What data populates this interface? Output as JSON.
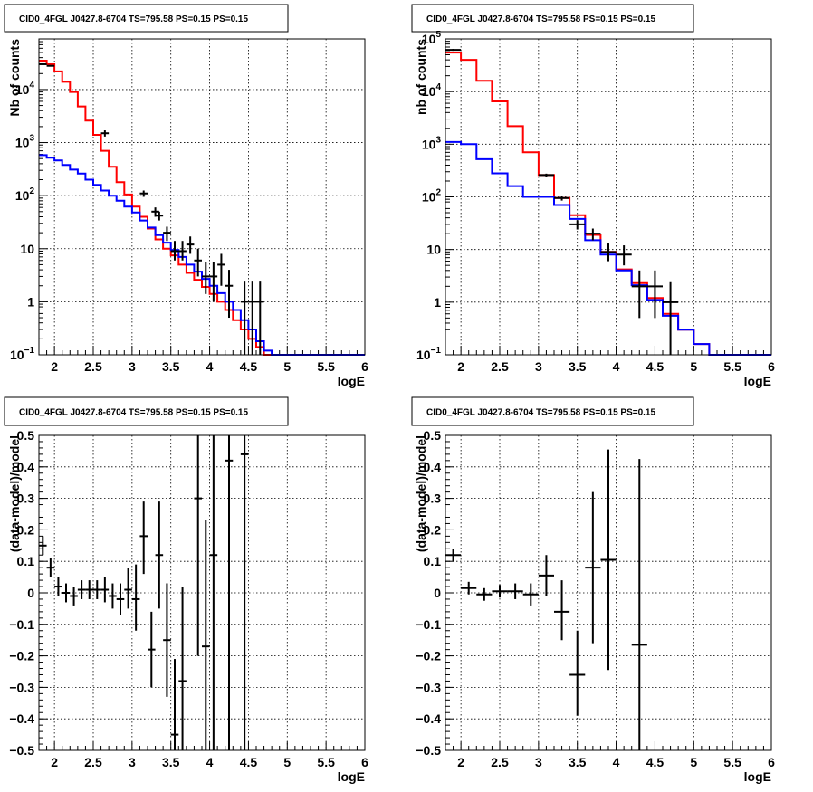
{
  "chart_data": [
    {
      "type": "line",
      "title": "CID0_4FGL J0427.8-6704 TS=795.58 PS=0.15 PS=0.15",
      "xlabel": "logE",
      "ylabel": "Nb of counts",
      "log_y": true,
      "xlim": [
        1.8,
        6
      ],
      "ylim": [
        0.1,
        90000
      ],
      "grid": true,
      "xticks": [
        2,
        2.5,
        3,
        3.5,
        4,
        4.5,
        5,
        5.5,
        6
      ],
      "xtick_labels": [
        "2",
        "2.5",
        "3",
        "3.5",
        "4",
        "4.5",
        "5",
        "5.5",
        "6"
      ],
      "yticks": [
        0.1,
        1,
        10,
        100,
        1000,
        10000
      ],
      "ytick_labels": [
        {
          "base": "10",
          "exp": "−1"
        },
        {
          "base": "1",
          "exp": ""
        },
        {
          "base": "10",
          "exp": ""
        },
        {
          "base": "10",
          "exp": "2"
        },
        {
          "base": "10",
          "exp": "3"
        },
        {
          "base": "10",
          "exp": "4"
        }
      ],
      "bin_edges": [
        1.8,
        1.9,
        2.0,
        2.1,
        2.2,
        2.3,
        2.4,
        2.5,
        2.6,
        2.7,
        2.8,
        2.9,
        3.0,
        3.1,
        3.2,
        3.3,
        3.4,
        3.5,
        3.6,
        3.7,
        3.8,
        3.9,
        4.0,
        4.1,
        4.2,
        4.3,
        4.4,
        4.5,
        4.6,
        4.7,
        4.8,
        4.9,
        5.0,
        5.1,
        5.2,
        5.3,
        5.4,
        5.5,
        5.6,
        5.7,
        5.8,
        5.9,
        6.0
      ],
      "series": [
        {
          "color": "#ff0000",
          "values": [
            35000,
            30000,
            22000,
            14000,
            9000,
            4800,
            2600,
            1400,
            700,
            350,
            180,
            105,
            62,
            40,
            24,
            15,
            10,
            7.5,
            5,
            3.5,
            2.6,
            1.9,
            1.4,
            1,
            0.7,
            0.45,
            0.3,
            0.2,
            0.14,
            0.1,
            0.1,
            0.1,
            0.1,
            0.1,
            0.1,
            0.1,
            0.1,
            0.1,
            0.1,
            0.1,
            0.1,
            0.1
          ]
        },
        {
          "color": "#0000ff",
          "values": [
            580,
            520,
            460,
            380,
            310,
            260,
            200,
            160,
            125,
            100,
            80,
            62,
            48,
            34,
            25,
            18,
            13,
            9.5,
            7,
            5,
            3.7,
            2.7,
            2,
            1.45,
            1,
            0.7,
            0.45,
            0.3,
            0.18,
            0.12,
            0.1,
            0.1,
            0.1,
            0.1,
            0.1,
            0.1,
            0.1,
            0.1,
            0.1,
            0.1,
            0.1,
            0.1
          ]
        }
      ],
      "points": [
        {
          "x": 1.85,
          "y": 30000,
          "dx": 0.05,
          "dy": [
            -800,
            800
          ]
        },
        {
          "x": 1.95,
          "y": 28000,
          "dx": 0.05,
          "dy": [
            -800,
            800
          ]
        },
        {
          "x": 2.65,
          "y": 1500,
          "dx": 0.05,
          "dy": [
            -200,
            200
          ]
        },
        {
          "x": 3.15,
          "y": 110,
          "dx": 0.05,
          "dy": [
            -15,
            15
          ]
        },
        {
          "x": 3.3,
          "y": 50,
          "dx": 0.05,
          "dy": [
            -10,
            10
          ]
        },
        {
          "x": 3.35,
          "y": 42,
          "dx": 0.05,
          "dy": [
            -8,
            8
          ]
        },
        {
          "x": 3.45,
          "y": 20,
          "dx": 0.05,
          "dy": [
            -6,
            6
          ]
        },
        {
          "x": 3.55,
          "y": 9,
          "dx": 0.05,
          "dy": [
            -3,
            5
          ]
        },
        {
          "x": 3.65,
          "y": 9,
          "dx": 0.05,
          "dy": [
            -3,
            5
          ]
        },
        {
          "x": 3.75,
          "y": 12,
          "dx": 0.05,
          "dy": [
            -4,
            5
          ]
        },
        {
          "x": 3.85,
          "y": 6,
          "dx": 0.05,
          "dy": [
            -3,
            4
          ]
        },
        {
          "x": 3.95,
          "y": 3,
          "dx": 0.05,
          "dy": [
            -1.6,
            2.5
          ]
        },
        {
          "x": 4.05,
          "y": 3,
          "dx": 0.05,
          "dy": [
            -2,
            2.5
          ]
        },
        {
          "x": 4.15,
          "y": 5,
          "dx": 0.05,
          "dy": [
            -3,
            3
          ]
        },
        {
          "x": 4.25,
          "y": 2,
          "dx": 0.05,
          "dy": [
            -1.5,
            2
          ]
        },
        {
          "x": 4.45,
          "y": 1,
          "dx": 0.05,
          "dy": [
            -0.999,
            1.4
          ]
        },
        {
          "x": 4.55,
          "y": 1,
          "dx": 0.05,
          "dy": [
            -0.999,
            1.4
          ]
        },
        {
          "x": 4.65,
          "y": 1,
          "dx": 0.05,
          "dy": [
            -0.999,
            1.4
          ]
        }
      ]
    },
    {
      "type": "line",
      "title": "CID0_4FGL J0427.8-6704 TS=795.58 PS=0.15 PS=0.15",
      "xlabel": "logE",
      "ylabel": "nb of counts",
      "log_y": true,
      "xlim": [
        1.8,
        6
      ],
      "ylim": [
        0.1,
        100000
      ],
      "grid": true,
      "xticks": [
        2,
        2.5,
        3,
        3.5,
        4,
        4.5,
        5,
        5.5,
        6
      ],
      "xtick_labels": [
        "2",
        "2.5",
        "3",
        "3.5",
        "4",
        "4.5",
        "5",
        "5.5",
        "6"
      ],
      "yticks": [
        0.1,
        1,
        10,
        100,
        1000,
        10000,
        100000
      ],
      "ytick_labels": [
        {
          "base": "10",
          "exp": "−1"
        },
        {
          "base": "1",
          "exp": ""
        },
        {
          "base": "10",
          "exp": ""
        },
        {
          "base": "10",
          "exp": "2"
        },
        {
          "base": "10",
          "exp": "3"
        },
        {
          "base": "10",
          "exp": "4"
        },
        {
          "base": "10",
          "exp": "5"
        }
      ],
      "bin_edges": [
        1.8,
        2.0,
        2.2,
        2.4,
        2.6,
        2.8,
        3.0,
        3.2,
        3.4,
        3.6,
        3.8,
        4.0,
        4.2,
        4.4,
        4.6,
        4.8,
        5.0,
        5.2,
        5.4,
        5.6,
        5.8,
        6.0
      ],
      "series": [
        {
          "color": "#ff0000",
          "values": [
            55000,
            40000,
            16000,
            6500,
            2200,
            700,
            260,
            95,
            45,
            19,
            9,
            4.2,
            2.3,
            1.2,
            0.6,
            0.3,
            0.16,
            0.1,
            0.1,
            0.1,
            0.1
          ]
        },
        {
          "color": "#0000ff",
          "values": [
            1100,
            1000,
            520,
            280,
            160,
            100,
            100,
            70,
            38,
            15,
            8,
            4,
            2.1,
            1.1,
            0.55,
            0.3,
            0.16,
            0.1,
            0.1,
            0.1,
            0.1
          ]
        }
      ],
      "points": [
        {
          "x": 1.9,
          "y": 62000,
          "dx": 0.1,
          "dy": [
            -2500,
            2500
          ]
        },
        {
          "x": 3.1,
          "y": 260,
          "dx": 0.1,
          "dy": [
            -16,
            16
          ]
        },
        {
          "x": 3.3,
          "y": 95,
          "dx": 0.1,
          "dy": [
            -10,
            10
          ]
        },
        {
          "x": 3.5,
          "y": 30,
          "dx": 0.1,
          "dy": [
            -6,
            6
          ]
        },
        {
          "x": 3.7,
          "y": 20,
          "dx": 0.1,
          "dy": [
            -5,
            5
          ]
        },
        {
          "x": 3.9,
          "y": 9,
          "dx": 0.1,
          "dy": [
            -3,
            4
          ]
        },
        {
          "x": 4.1,
          "y": 8,
          "dx": 0.1,
          "dy": [
            -3,
            4
          ]
        },
        {
          "x": 4.3,
          "y": 2,
          "dx": 0.1,
          "dy": [
            -1.5,
            2
          ]
        },
        {
          "x": 4.5,
          "y": 2,
          "dx": 0.1,
          "dy": [
            -1.5,
            2
          ]
        },
        {
          "x": 4.7,
          "y": 1,
          "dx": 0.1,
          "dy": [
            -0.999,
            1.4
          ]
        }
      ]
    },
    {
      "type": "scatter",
      "title": "CID0_4FGL J0427.8-6704 TS=795.58 PS=0.15 PS=0.15",
      "xlabel": "logE",
      "ylabel": "(data-model)/model",
      "xlim": [
        1.8,
        6
      ],
      "ylim": [
        -0.5,
        0.5
      ],
      "grid": true,
      "xticks": [
        2,
        2.5,
        3,
        3.5,
        4,
        4.5,
        5,
        5.5,
        6
      ],
      "xtick_labels": [
        "2",
        "2.5",
        "3",
        "3.5",
        "4",
        "4.5",
        "5",
        "5.5",
        "6"
      ],
      "yticks": [
        -0.5,
        -0.4,
        -0.3,
        -0.2,
        -0.1,
        0,
        0.1,
        0.2,
        0.3,
        0.4,
        0.5
      ],
      "ytick_labels": [
        "−0.5",
        "−0.4",
        "−0.3",
        "−0.2",
        "−0.1",
        "0",
        "0.1",
        "0.2",
        "0.3",
        "0.4",
        "0.5"
      ],
      "points": [
        {
          "x": 1.85,
          "y": 0.15,
          "dx": 0.05,
          "dy": [
            -0.03,
            0.03
          ]
        },
        {
          "x": 1.95,
          "y": 0.08,
          "dx": 0.05,
          "dy": [
            -0.03,
            0.03
          ]
        },
        {
          "x": 2.05,
          "y": 0.02,
          "dx": 0.05,
          "dy": [
            -0.03,
            0.03
          ]
        },
        {
          "x": 2.15,
          "y": 0.0,
          "dx": 0.05,
          "dy": [
            -0.03,
            0.03
          ]
        },
        {
          "x": 2.25,
          "y": -0.01,
          "dx": 0.05,
          "dy": [
            -0.03,
            0.03
          ]
        },
        {
          "x": 2.35,
          "y": 0.01,
          "dx": 0.05,
          "dy": [
            -0.03,
            0.03
          ]
        },
        {
          "x": 2.45,
          "y": 0.01,
          "dx": 0.05,
          "dy": [
            -0.03,
            0.03
          ]
        },
        {
          "x": 2.55,
          "y": 0.01,
          "dx": 0.05,
          "dy": [
            -0.03,
            0.03
          ]
        },
        {
          "x": 2.65,
          "y": 0.01,
          "dx": 0.05,
          "dy": [
            -0.04,
            0.04
          ]
        },
        {
          "x": 2.75,
          "y": -0.01,
          "dx": 0.05,
          "dy": [
            -0.04,
            0.04
          ]
        },
        {
          "x": 2.85,
          "y": -0.02,
          "dx": 0.05,
          "dy": [
            -0.05,
            0.05
          ]
        },
        {
          "x": 2.95,
          "y": 0.01,
          "dx": 0.05,
          "dy": [
            -0.06,
            0.07
          ]
        },
        {
          "x": 3.05,
          "y": -0.02,
          "dx": 0.05,
          "dy": [
            -0.1,
            0.11
          ]
        },
        {
          "x": 3.15,
          "y": 0.18,
          "dx": 0.05,
          "dy": [
            -0.12,
            0.11
          ]
        },
        {
          "x": 3.25,
          "y": -0.18,
          "dx": 0.05,
          "dy": [
            -0.12,
            0.12
          ]
        },
        {
          "x": 3.35,
          "y": 0.12,
          "dx": 0.05,
          "dy": [
            -0.17,
            0.17
          ]
        },
        {
          "x": 3.45,
          "y": -0.15,
          "dx": 0.05,
          "dy": [
            -0.18,
            0.18
          ]
        },
        {
          "x": 3.55,
          "y": -0.45,
          "dx": 0.05,
          "dy": [
            -0.2,
            0.24
          ]
        },
        {
          "x": 3.65,
          "y": -0.28,
          "dx": 0.05,
          "dy": [
            -0.3,
            0.3
          ]
        },
        {
          "x": 3.85,
          "y": 0.3,
          "dx": 0.05,
          "dy": [
            -0.5,
            0.5
          ]
        },
        {
          "x": 3.95,
          "y": -0.17,
          "dx": 0.05,
          "dy": [
            -0.4,
            0.4
          ]
        },
        {
          "x": 4.05,
          "y": 0.12,
          "dx": 0.05,
          "dy": [
            -0.8,
            0.8
          ]
        },
        {
          "x": 4.25,
          "y": 0.42,
          "dx": 0.05,
          "dy": [
            -1.0,
            1.0
          ]
        },
        {
          "x": 4.45,
          "y": 0.44,
          "dx": 0.05,
          "dy": [
            -1.2,
            1.2
          ]
        }
      ]
    },
    {
      "type": "scatter",
      "title": "CID0_4FGL J0427.8-6704 TS=795.58 PS=0.15 PS=0.15",
      "xlabel": "logE",
      "ylabel": "(data-model)/model",
      "xlim": [
        1.8,
        6
      ],
      "ylim": [
        -0.5,
        0.5
      ],
      "grid": true,
      "xticks": [
        2,
        2.5,
        3,
        3.5,
        4,
        4.5,
        5,
        5.5,
        6
      ],
      "xtick_labels": [
        "2",
        "2.5",
        "3",
        "3.5",
        "4",
        "4.5",
        "5",
        "5.5",
        "6"
      ],
      "yticks": [
        -0.5,
        -0.4,
        -0.3,
        -0.2,
        -0.1,
        0,
        0.1,
        0.2,
        0.3,
        0.4,
        0.5
      ],
      "ytick_labels": [
        "−0.5",
        "−0.4",
        "−0.3",
        "−0.2",
        "−0.1",
        "0",
        "0.1",
        "0.2",
        "0.3",
        "0.4",
        "0.5"
      ],
      "points": [
        {
          "x": 1.9,
          "y": 0.12,
          "dx": 0.1,
          "dy": [
            -0.02,
            0.02
          ]
        },
        {
          "x": 2.1,
          "y": 0.015,
          "dx": 0.1,
          "dy": [
            -0.02,
            0.02
          ]
        },
        {
          "x": 2.3,
          "y": -0.005,
          "dx": 0.1,
          "dy": [
            -0.02,
            0.02
          ]
        },
        {
          "x": 2.5,
          "y": 0.005,
          "dx": 0.1,
          "dy": [
            -0.02,
            0.02
          ]
        },
        {
          "x": 2.7,
          "y": 0.005,
          "dx": 0.1,
          "dy": [
            -0.025,
            0.025
          ]
        },
        {
          "x": 2.9,
          "y": -0.005,
          "dx": 0.1,
          "dy": [
            -0.035,
            0.035
          ]
        },
        {
          "x": 3.1,
          "y": 0.055,
          "dx": 0.1,
          "dy": [
            -0.065,
            0.065
          ]
        },
        {
          "x": 3.3,
          "y": -0.06,
          "dx": 0.1,
          "dy": [
            -0.09,
            0.1
          ]
        },
        {
          "x": 3.5,
          "y": -0.26,
          "dx": 0.1,
          "dy": [
            -0.13,
            0.14
          ]
        },
        {
          "x": 3.7,
          "y": 0.08,
          "dx": 0.1,
          "dy": [
            -0.24,
            0.24
          ]
        },
        {
          "x": 3.9,
          "y": 0.105,
          "dx": 0.1,
          "dy": [
            -0.35,
            0.35
          ]
        },
        {
          "x": 4.3,
          "y": -0.165,
          "dx": 0.1,
          "dy": [
            -0.6,
            0.59
          ]
        }
      ]
    }
  ]
}
